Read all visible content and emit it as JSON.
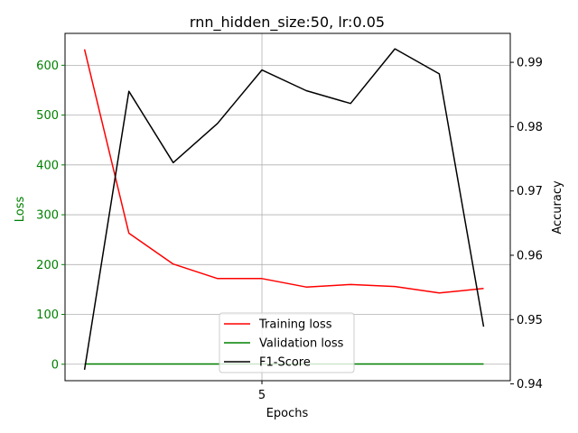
{
  "chart_data": {
    "type": "line",
    "title": "rnn_hidden_size:50, lr:0.05",
    "xlabel": "Epochs",
    "ylabel_left": "Loss",
    "ylabel_right": "Accuracy",
    "x": [
      1,
      2,
      3,
      4,
      5,
      6,
      7,
      8,
      9,
      10
    ],
    "xlim": [
      0.56,
      10.6
    ],
    "x_ticks": [
      5
    ],
    "x_tick_labels": [
      "5"
    ],
    "ylim_left": [
      -33,
      664
    ],
    "y_ticks_left": [
      0,
      100,
      200,
      300,
      400,
      500,
      600
    ],
    "y_tick_labels_left": [
      "0",
      "100",
      "200",
      "300",
      "400",
      "500",
      "600"
    ],
    "ylim_right": [
      0.9405,
      0.9945
    ],
    "y_ticks_right": [
      0.94,
      0.95,
      0.96,
      0.97,
      0.98,
      0.99
    ],
    "y_tick_labels_right": [
      "0.94",
      "0.95",
      "0.96",
      "0.97",
      "0.98",
      "0.99"
    ],
    "grid": true,
    "legend_position": "bottom-center",
    "left_axis_color": "#008000",
    "series": [
      {
        "name": "Training loss",
        "axis": "left",
        "color": "#ff0000",
        "values": [
          632,
          263,
          201,
          172,
          172,
          155,
          160,
          156,
          143,
          152
        ]
      },
      {
        "name": "Validation loss",
        "axis": "left",
        "color": "#008000",
        "values": [
          0.5,
          0.5,
          0.5,
          0.5,
          0.5,
          0.5,
          0.5,
          0.5,
          0.5,
          0.5
        ]
      },
      {
        "name": "F1-Score",
        "axis": "right",
        "color": "#000000",
        "values": [
          0.9422,
          0.9855,
          0.9744,
          0.9805,
          0.9888,
          0.9856,
          0.9836,
          0.9921,
          0.9882,
          0.9489
        ]
      }
    ]
  }
}
